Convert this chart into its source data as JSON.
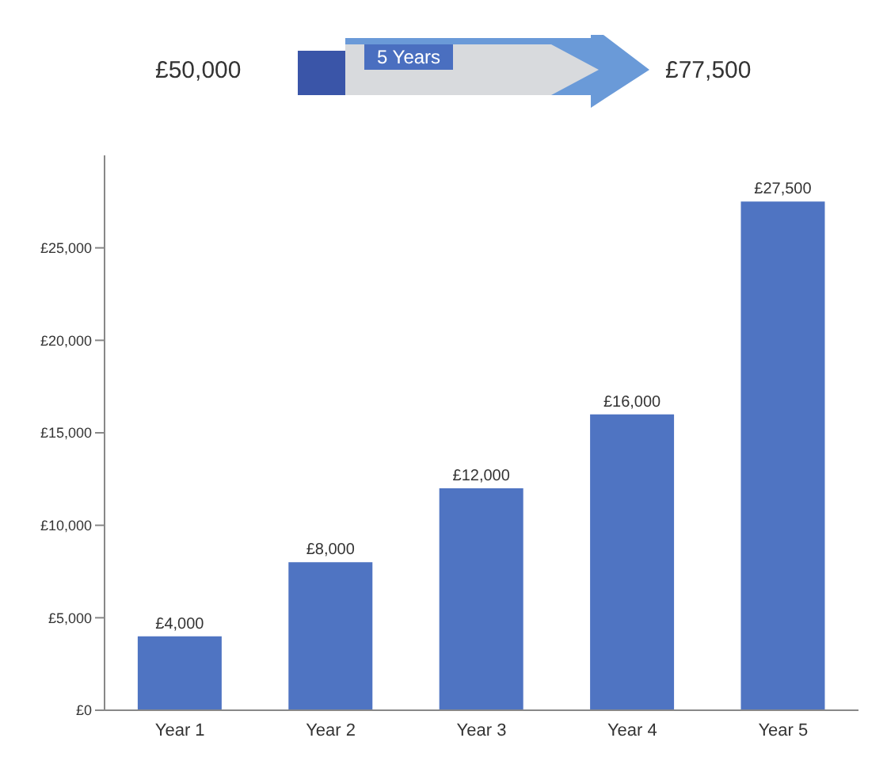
{
  "chart_data": {
    "type": "bar",
    "annotations": [
      "£50,000",
      "5 Years",
      "£77,500"
    ],
    "categories": [
      "Year 1",
      "Year 2",
      "Year 3",
      "Year 4",
      "Year 5"
    ],
    "series": [
      {
        "color": "#4f74c2",
        "values": [
          4000,
          8000,
          12000,
          16000,
          27500
        ],
        "value_labels": [
          "£4,000",
          "£8,000",
          "£12,000",
          "£16,000",
          "£27,500"
        ]
      }
    ],
    "ylim": [
      0,
      30000
    ],
    "yticks": [
      {
        "value": 0,
        "label": "£0"
      },
      {
        "value": 5000,
        "label": "£5,000"
      },
      {
        "value": 10000,
        "label": "£10,000"
      },
      {
        "value": 15000,
        "label": "£15,000"
      },
      {
        "value": 20000,
        "label": "£20,000"
      },
      {
        "value": 25000,
        "label": "£25,000"
      }
    ],
    "grid": false,
    "legend": false
  }
}
